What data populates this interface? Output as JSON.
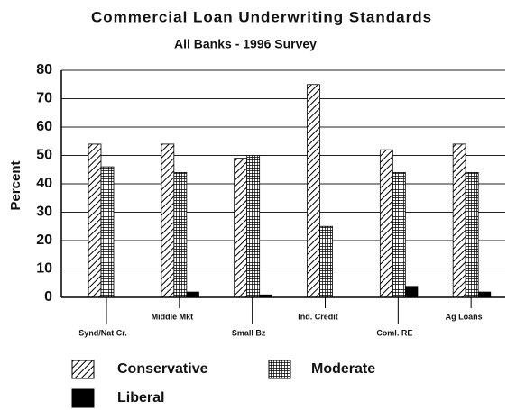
{
  "chart_data": {
    "type": "bar",
    "title": "Commercial Loan Underwriting Standards",
    "subtitle": "All Banks - 1996 Survey",
    "y_label": "Percent",
    "categories": [
      "Synd/Nat Cr.",
      "Middle Mkt",
      "Small Bz",
      "Ind. Credit",
      "Coml. RE",
      "Ag Loans"
    ],
    "series": [
      {
        "name": "Conservative",
        "color": "#000000",
        "pattern": "diagonal",
        "values": [
          54,
          54,
          49,
          75,
          52,
          54
        ]
      },
      {
        "name": "Moderate",
        "color": "#000000",
        "pattern": "grid",
        "values": [
          46,
          44,
          50,
          25,
          44,
          44
        ]
      },
      {
        "name": "Liberal",
        "color": "#000000",
        "pattern": "solid",
        "values": [
          0,
          2,
          1,
          0,
          4,
          2
        ]
      }
    ],
    "ylim": [
      0,
      80
    ],
    "yticks": [
      0,
      10,
      20,
      30,
      40,
      50,
      60,
      70,
      80
    ],
    "grid": true,
    "legend": "bottom"
  }
}
